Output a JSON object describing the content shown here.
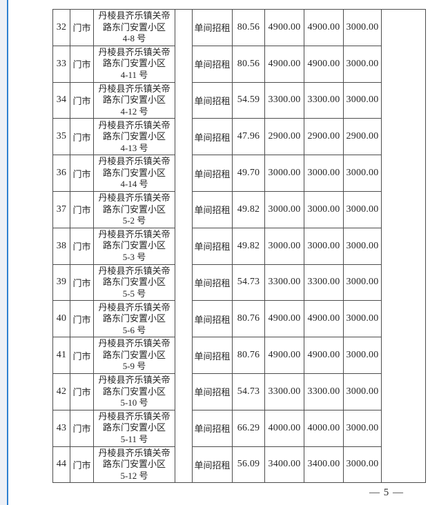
{
  "colors": {
    "edge_line_blue": "#2d7fd0",
    "left_strip": "#edf0f6",
    "table_border": "#4c4c4c"
  },
  "table": {
    "rows": [
      {
        "no": "32",
        "type": "门市",
        "address_lines": [
          "丹棱县齐乐镇关帝",
          "路东门安置小区",
          "4-8 号"
        ],
        "usage": "单间招租",
        "area": "80.56",
        "price1": "4900.00",
        "price2": "4900.00",
        "deposit": "3000.00"
      },
      {
        "no": "33",
        "type": "门市",
        "address_lines": [
          "丹棱县齐乐镇关帝",
          "路东门安置小区",
          "4-11 号"
        ],
        "usage": "单间招租",
        "area": "80.56",
        "price1": "4900.00",
        "price2": "4900.00",
        "deposit": "3000.00"
      },
      {
        "no": "34",
        "type": "门市",
        "address_lines": [
          "丹棱县齐乐镇关帝",
          "路东门安置小区",
          "4-12 号"
        ],
        "usage": "单间招租",
        "area": "54.59",
        "price1": "3300.00",
        "price2": "3300.00",
        "deposit": "3000.00"
      },
      {
        "no": "35",
        "type": "门市",
        "address_lines": [
          "丹棱县齐乐镇关帝",
          "路东门安置小区",
          "4-13 号"
        ],
        "usage": "单间招租",
        "area": "47.96",
        "price1": "2900.00",
        "price2": "2900.00",
        "deposit": "2900.00"
      },
      {
        "no": "36",
        "type": "门市",
        "address_lines": [
          "丹棱县齐乐镇关帝",
          "路东门安置小区",
          "4-14 号"
        ],
        "usage": "单间招租",
        "area": "49.70",
        "price1": "3000.00",
        "price2": "3000.00",
        "deposit": "3000.00"
      },
      {
        "no": "37",
        "type": "门市",
        "address_lines": [
          "丹棱县齐乐镇关帝",
          "路东门安置小区",
          "5-2 号"
        ],
        "usage": "单间招租",
        "area": "49.82",
        "price1": "3000.00",
        "price2": "3000.00",
        "deposit": "3000.00"
      },
      {
        "no": "38",
        "type": "门市",
        "address_lines": [
          "丹棱县齐乐镇关帝",
          "路东门安置小区",
          "5-3 号"
        ],
        "usage": "单间招租",
        "area": "49.82",
        "price1": "3000.00",
        "price2": "3000.00",
        "deposit": "3000.00"
      },
      {
        "no": "39",
        "type": "门市",
        "address_lines": [
          "丹棱县齐乐镇关帝",
          "路东门安置小区",
          "5-5 号"
        ],
        "usage": "单间招租",
        "area": "54.73",
        "price1": "3300.00",
        "price2": "3300.00",
        "deposit": "3000.00"
      },
      {
        "no": "40",
        "type": "门市",
        "address_lines": [
          "丹棱县齐乐镇关帝",
          "路东门安置小区",
          "5-6 号"
        ],
        "usage": "单间招租",
        "area": "80.76",
        "price1": "4900.00",
        "price2": "4900.00",
        "deposit": "3000.00"
      },
      {
        "no": "41",
        "type": "门市",
        "address_lines": [
          "丹棱县齐乐镇关帝",
          "路东门安置小区",
          "5-9 号"
        ],
        "usage": "单间招租",
        "area": "80.76",
        "price1": "4900.00",
        "price2": "4900.00",
        "deposit": "3000.00"
      },
      {
        "no": "42",
        "type": "门市",
        "address_lines": [
          "丹棱县齐乐镇关帝",
          "路东门安置小区",
          "5-10 号"
        ],
        "usage": "单间招租",
        "area": "54.73",
        "price1": "3300.00",
        "price2": "3300.00",
        "deposit": "3000.00"
      },
      {
        "no": "43",
        "type": "门市",
        "address_lines": [
          "丹棱县齐乐镇关帝",
          "路东门安置小区",
          "5-11 号"
        ],
        "usage": "单间招租",
        "area": "66.29",
        "price1": "4000.00",
        "price2": "4000.00",
        "deposit": "3000.00"
      },
      {
        "no": "44",
        "type": "门市",
        "address_lines": [
          "丹棱县齐乐镇关帝",
          "路东门安置小区",
          "5-12 号"
        ],
        "usage": "单间招租",
        "area": "56.09",
        "price1": "3400.00",
        "price2": "3400.00",
        "deposit": "3000.00"
      }
    ]
  },
  "footer": {
    "page_label": "— 5 —"
  }
}
